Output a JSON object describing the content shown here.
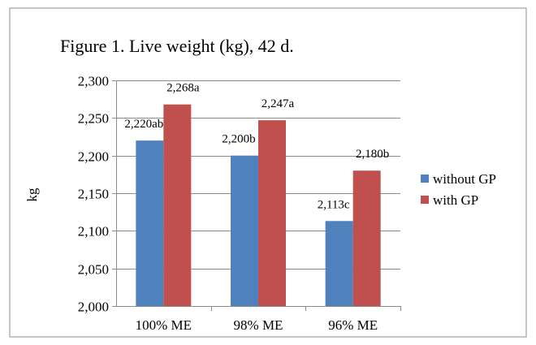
{
  "chart_data": {
    "type": "bar",
    "title": "Figure 1. Live weight (kg), 42 d.",
    "ylabel": "kg",
    "xlabel": "",
    "categories": [
      "100% ME",
      "98% ME",
      "96% ME"
    ],
    "ylim": [
      2000,
      2300
    ],
    "ytick_step": 50,
    "ytick_labels": [
      "2,000",
      "2,050",
      "2,100",
      "2,150",
      "2,200",
      "2,250",
      "2,300"
    ],
    "grid": true,
    "legend_position": "right",
    "series": [
      {
        "name": "without GP",
        "color": "#4f81bd",
        "values": [
          2220,
          2200,
          2113
        ],
        "labels": [
          "2,220ab",
          "2,200b",
          "2,113c"
        ]
      },
      {
        "name": "with GP",
        "color": "#c0504d",
        "values": [
          2268,
          2247,
          2180
        ],
        "labels": [
          "2,268a",
          "2,247a",
          "2,180b"
        ]
      }
    ]
  }
}
